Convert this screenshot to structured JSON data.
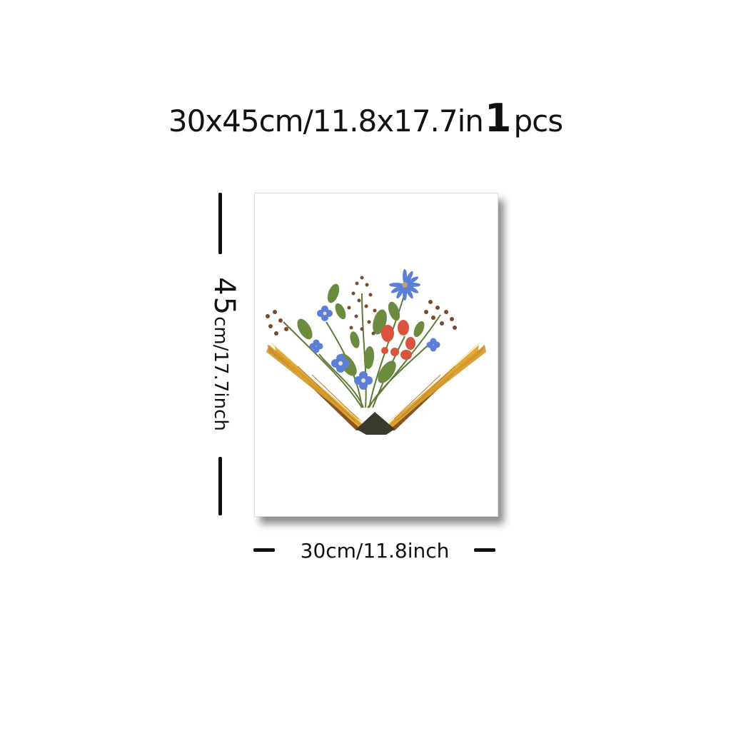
{
  "title": {
    "size_text": "30x45cm/11.8x17.7in",
    "quantity": "1",
    "unit": "pcs"
  },
  "dimensions": {
    "height_value": "45",
    "height_rest": "cm/17.7inch",
    "width_label": "30cm/11.8inch"
  },
  "colors": {
    "book_page": "#e2a93a",
    "book_cover": "#8a5324",
    "blue_flower": "#5b7fd6",
    "red_berry": "#d9533f",
    "leaf": "#6d8b3e",
    "dry_sprig": "#7a4a2c"
  },
  "artwork": {
    "subject": "open-book-with-wildflowers"
  }
}
